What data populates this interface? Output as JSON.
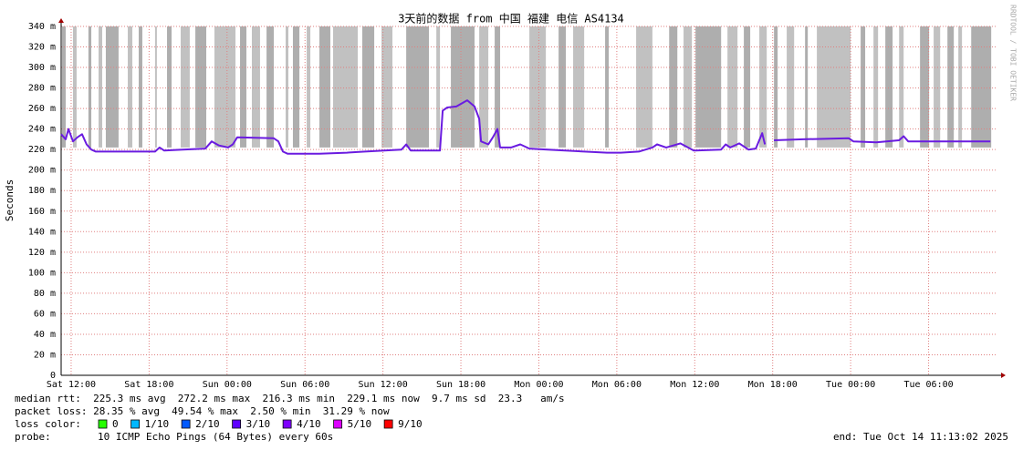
{
  "chart_data": {
    "type": "line",
    "title": "3天前的数据 from 中国 福建 电信 AS4134",
    "y_label": "Seconds",
    "side_text": "RRDTOOL / TOBI OETIKER",
    "xlim": [
      -0.77,
      71.3
    ],
    "xticks": [
      {
        "value": 0,
        "label": "Sat 12:00"
      },
      {
        "value": 6,
        "label": "Sat 18:00"
      },
      {
        "value": 12,
        "label": "Sun 00:00"
      },
      {
        "value": 18,
        "label": "Sun 06:00"
      },
      {
        "value": 24,
        "label": "Sun 12:00"
      },
      {
        "value": 30,
        "label": "Sun 18:00"
      },
      {
        "value": 36,
        "label": "Mon 00:00"
      },
      {
        "value": 42,
        "label": "Mon 06:00"
      },
      {
        "value": 48,
        "label": "Mon 12:00"
      },
      {
        "value": 54,
        "label": "Mon 18:00"
      },
      {
        "value": 60,
        "label": "Tue 00:00"
      },
      {
        "value": 66,
        "label": "Tue 06:00"
      }
    ],
    "ylim": [
      0,
      0.34
    ],
    "yticks": [
      0,
      {
        "value": 0.02,
        "label": "20 m"
      },
      {
        "value": 0.04,
        "label": "40 m"
      },
      {
        "value": 0.06,
        "label": "60 m"
      },
      {
        "value": 0.08,
        "label": "80 m"
      },
      {
        "value": 0.1,
        "label": "100 m"
      },
      {
        "value": 0.12,
        "label": "120 m"
      },
      {
        "value": 0.14,
        "label": "140 m"
      },
      {
        "value": 0.16,
        "label": "160 m"
      },
      {
        "value": 0.18,
        "label": "180 m"
      },
      {
        "value": 0.2,
        "label": "200 m"
      },
      {
        "value": 0.22,
        "label": "220 m"
      },
      {
        "value": 0.24,
        "label": "240 m"
      },
      {
        "value": 0.26,
        "label": "260 m"
      },
      {
        "value": 0.28,
        "label": "280 m"
      },
      {
        "value": 0.3,
        "label": "300 m"
      },
      {
        "value": 0.32,
        "label": "320 m"
      },
      {
        "value": 0.34,
        "label": "340 m"
      }
    ],
    "grid": true,
    "smoke_color": "#a0a0a0",
    "smoke": [
      [
        -0.7,
        -0.42
      ],
      [
        0.14,
        0.42
      ],
      [
        1.33,
        1.55
      ],
      [
        2.11,
        2.39
      ],
      [
        2.67,
        3.65
      ],
      [
        4.36,
        4.71
      ],
      [
        5.2,
        5.48
      ],
      [
        6.46,
        6.6
      ],
      [
        7.38,
        7.73
      ],
      [
        8.43,
        9.13
      ],
      [
        9.56,
        10.4
      ],
      [
        11.03,
        12.65
      ],
      [
        13.0,
        13.49
      ],
      [
        13.91,
        14.54
      ],
      [
        15.04,
        15.6
      ],
      [
        16.51,
        16.72
      ],
      [
        17.07,
        17.57
      ],
      [
        18.13,
        18.41
      ],
      [
        19.11,
        19.95
      ],
      [
        20.16,
        22.06
      ],
      [
        22.41,
        23.33
      ],
      [
        23.89,
        24.73
      ],
      [
        25.79,
        27.54
      ],
      [
        28.11,
        28.39
      ],
      [
        29.23,
        31.05
      ],
      [
        31.41,
        32.11
      ],
      [
        32.6,
        33.02
      ],
      [
        35.27,
        36.54
      ],
      [
        37.52,
        38.08
      ],
      [
        38.64,
        39.49
      ],
      [
        41.1,
        41.38
      ],
      [
        43.49,
        44.74
      ],
      [
        46.03,
        46.66
      ],
      [
        47.14,
        47.78
      ],
      [
        48.06,
        50.03
      ],
      [
        50.52,
        51.29
      ],
      [
        51.78,
        52.27
      ],
      [
        52.97,
        53.54
      ],
      [
        54.1,
        54.38
      ],
      [
        55.08,
        55.65
      ],
      [
        56.49,
        56.7
      ],
      [
        57.4,
        60.0
      ],
      [
        60.77,
        61.12
      ],
      [
        61.76,
        62.11
      ],
      [
        62.67,
        63.23
      ],
      [
        63.73,
        64.08
      ],
      [
        65.34,
        66.04
      ],
      [
        66.39,
        66.89
      ],
      [
        67.45,
        67.94
      ],
      [
        68.29,
        68.57
      ],
      [
        69.28,
        70.82
      ]
    ],
    "x": [
      -0.77,
      -0.42,
      -0.21,
      0.14,
      0.49,
      0.84,
      1.19,
      1.55,
      1.9,
      3.65,
      6.46,
      6.81,
      7.17,
      8.57,
      10.33,
      10.82,
      11.38,
      12.08,
      12.44,
      12.79,
      15.6,
      15.95,
      16.3,
      16.65,
      19.11,
      21.22,
      22.62,
      25.43,
      25.79,
      26.14,
      28.39,
      28.6,
      28.95,
      29.65,
      30.49,
      31.05,
      31.41,
      31.55,
      32.11,
      32.46,
      32.81,
      33.02,
      33.86,
      34.57,
      35.27,
      36.68,
      39.49,
      41.24,
      42.3,
      43.7,
      44.74,
      45.1,
      45.8,
      46.89,
      47.92,
      50.03,
      50.38,
      50.73,
      51.43,
      52.13,
      52.7,
      53.19,
      53.4,
      53.9,
      54.1,
      56.35,
      59.86,
      60.21,
      61.97,
      63.73,
      64.08,
      64.43,
      70.75
    ],
    "series": [
      {
        "name": "median rtt",
        "color": "#6a1be0",
        "values": [
          0.235,
          0.23,
          0.24,
          0.228,
          0.232,
          0.235,
          0.225,
          0.22,
          0.218,
          0.218,
          0.218,
          0.222,
          0.219,
          0.22,
          0.221,
          0.228,
          0.224,
          0.222,
          0.225,
          0.232,
          0.231,
          0.228,
          0.218,
          0.216,
          0.216,
          0.217,
          0.218,
          0.22,
          0.225,
          0.219,
          0.219,
          0.258,
          0.261,
          0.262,
          0.268,
          0.262,
          0.25,
          0.228,
          0.225,
          0.232,
          0.24,
          0.222,
          0.222,
          0.225,
          0.221,
          0.22,
          0.218,
          0.217,
          0.217,
          0.218,
          0.222,
          0.225,
          0.222,
          0.226,
          0.219,
          0.22,
          0.225,
          0.222,
          0.226,
          0.22,
          0.221,
          0.236,
          0.225,
          null,
          0.229,
          0.23,
          0.231,
          0.228,
          0.227,
          0.229,
          0.233,
          0.228,
          0.228
        ]
      }
    ],
    "stats_line": "median rtt:  225.3 ms avg  272.2 ms max  216.3 ms min  229.1 ms now  9.7 ms sd  23.3   am/s",
    "loss_line": "packet loss: 28.35 % avg  49.54 % max  2.50 % min  31.29 % now",
    "loss_color_label": "loss color:",
    "loss_colors": [
      {
        "label": "0",
        "color": "#26ff00"
      },
      {
        "label": "1/10",
        "color": "#00b8ff"
      },
      {
        "label": "2/10",
        "color": "#0059ff"
      },
      {
        "label": "3/10",
        "color": "#5e00ff"
      },
      {
        "label": "4/10",
        "color": "#7e00ff"
      },
      {
        "label": "5/10",
        "color": "#dd00ff"
      },
      {
        "label": "9/10",
        "color": "#ff0000"
      }
    ],
    "probe_label": "probe:",
    "probe_text": "10 ICMP Echo Pings (64 Bytes) every 60s",
    "end_text": "end: Tue Oct 14 11:13:02 2025"
  }
}
